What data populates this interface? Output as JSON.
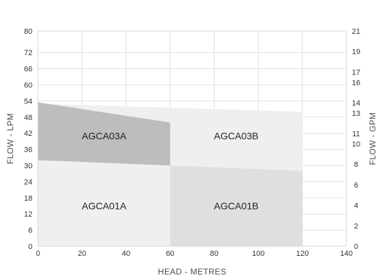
{
  "chart_data": {
    "type": "area",
    "xlabel": "HEAD - METRES",
    "ylabel": "FLOW - LPM",
    "y2label": "FLOW - GPM",
    "xlim": [
      0,
      140
    ],
    "ylim": [
      0,
      80
    ],
    "y2lim": [
      0,
      21
    ],
    "xticks": [
      0,
      20,
      40,
      60,
      80,
      100,
      120,
      140
    ],
    "yticks": [
      0,
      6,
      12,
      18,
      24,
      30,
      36,
      42,
      48,
      54,
      60,
      66,
      72,
      80
    ],
    "y2ticks": [
      0,
      2,
      4,
      6,
      8,
      10,
      11,
      13,
      14,
      16,
      17,
      19,
      21
    ],
    "grid": true,
    "series": [
      {
        "name": "AGCA01A",
        "label_pos": [
          20,
          15
        ],
        "color": "#efefef",
        "points": [
          [
            0,
            0
          ],
          [
            0,
            32
          ],
          [
            60,
            30
          ],
          [
            60,
            0
          ]
        ]
      },
      {
        "name": "AGCA01B",
        "label_pos": [
          80,
          15
        ],
        "color": "#dfdfdf",
        "points": [
          [
            60,
            0
          ],
          [
            60,
            30.5
          ],
          [
            120,
            28
          ],
          [
            120,
            0
          ]
        ]
      },
      {
        "name": "AGCA03B",
        "label_pos": [
          80,
          41
        ],
        "color": "#efefef",
        "points": [
          [
            0,
            53
          ],
          [
            120,
            50
          ],
          [
            120,
            28
          ],
          [
            0,
            32
          ]
        ]
      },
      {
        "name": "AGCA03A",
        "label_pos": [
          20,
          41
        ],
        "color": "#bdbdbd",
        "points": [
          [
            0,
            53.5
          ],
          [
            60,
            46
          ],
          [
            60,
            30
          ],
          [
            0,
            32
          ]
        ]
      }
    ]
  }
}
